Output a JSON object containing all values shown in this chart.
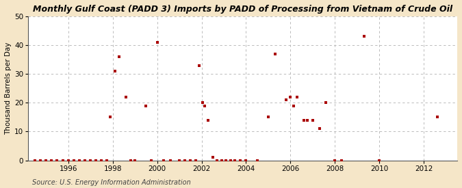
{
  "title": "Monthly Gulf Coast (PADD 3) Imports by PADD of Processing from Vietnam of Crude Oil",
  "ylabel": "Thousand Barrels per Day",
  "source": "Source: U.S. Energy Information Administration",
  "xlim": [
    1994.2,
    2013.5
  ],
  "ylim": [
    0,
    50
  ],
  "yticks": [
    0,
    10,
    20,
    30,
    40,
    50
  ],
  "xticks": [
    1996,
    1998,
    2000,
    2002,
    2004,
    2006,
    2008,
    2010,
    2012
  ],
  "background_color": "#f5e6c8",
  "plot_bg_color": "#ffffff",
  "marker_color": "#aa0000",
  "marker_size": 6,
  "data_points": [
    [
      1994.5,
      0
    ],
    [
      1994.75,
      0
    ],
    [
      1995.0,
      0
    ],
    [
      1995.25,
      0
    ],
    [
      1995.5,
      0
    ],
    [
      1995.75,
      0
    ],
    [
      1996.0,
      0
    ],
    [
      1996.25,
      0
    ],
    [
      1996.5,
      0
    ],
    [
      1996.75,
      0
    ],
    [
      1997.0,
      0
    ],
    [
      1997.25,
      0
    ],
    [
      1997.5,
      0
    ],
    [
      1997.75,
      0
    ],
    [
      1997.9,
      15
    ],
    [
      1998.1,
      31
    ],
    [
      1998.3,
      36
    ],
    [
      1998.6,
      22
    ],
    [
      1998.8,
      0
    ],
    [
      1999.0,
      0
    ],
    [
      1999.5,
      19
    ],
    [
      1999.75,
      0
    ],
    [
      2000.0,
      41
    ],
    [
      2000.3,
      0
    ],
    [
      2000.6,
      0
    ],
    [
      2001.0,
      0
    ],
    [
      2001.25,
      0
    ],
    [
      2001.5,
      0
    ],
    [
      2001.75,
      0
    ],
    [
      2001.9,
      33
    ],
    [
      2002.05,
      20
    ],
    [
      2002.15,
      19
    ],
    [
      2002.3,
      14
    ],
    [
      2002.5,
      1
    ],
    [
      2002.7,
      0
    ],
    [
      2002.9,
      0
    ],
    [
      2003.1,
      0
    ],
    [
      2003.3,
      0
    ],
    [
      2003.5,
      0
    ],
    [
      2003.75,
      0
    ],
    [
      2004.0,
      0
    ],
    [
      2004.5,
      0
    ],
    [
      2005.0,
      15
    ],
    [
      2005.3,
      37
    ],
    [
      2005.8,
      21
    ],
    [
      2006.0,
      22
    ],
    [
      2006.15,
      19
    ],
    [
      2006.3,
      22
    ],
    [
      2006.6,
      14
    ],
    [
      2006.75,
      14
    ],
    [
      2007.0,
      14
    ],
    [
      2007.3,
      11
    ],
    [
      2007.6,
      20
    ],
    [
      2008.0,
      0
    ],
    [
      2008.3,
      0
    ],
    [
      2009.3,
      43
    ],
    [
      2010.0,
      0
    ],
    [
      2012.6,
      15
    ]
  ]
}
